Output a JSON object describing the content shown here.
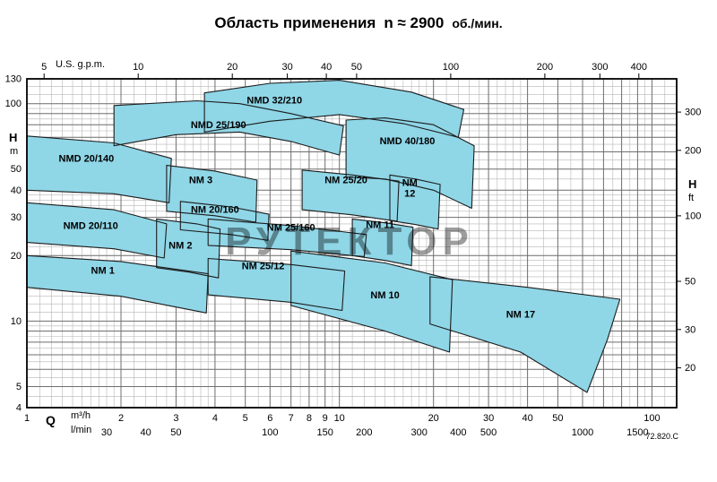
{
  "title": {
    "main": "Область применения",
    "speed": "n ≈ 2900",
    "units": "об./мин."
  },
  "watermark": "РУТЕКТОР",
  "doc_number": "72.820.C",
  "colors": {
    "region_fill": "#8fd6e7",
    "region_stroke": "#1c1c1c",
    "grid_minor": "#b6b6b6",
    "grid_major": "#707070",
    "frame": "#000000"
  },
  "axes": {
    "top": {
      "label": "U.S. g.p.m.",
      "ticks": [
        5,
        10,
        20,
        30,
        40,
        50,
        100,
        200,
        300,
        400
      ],
      "to_m3h": 0.2271
    },
    "left": {
      "quantity": "H",
      "unit": "m",
      "ticks": [
        130,
        100,
        50,
        40,
        30,
        20,
        10,
        5,
        4
      ]
    },
    "right": {
      "quantity": "H",
      "unit": "ft",
      "ticks": [
        300,
        200,
        100,
        50,
        30,
        20
      ],
      "to_m": 0.3048
    },
    "bottom_m3h": {
      "quantity": "Q",
      "unit": "m³/h",
      "ticks": [
        1,
        2,
        3,
        4,
        5,
        6,
        7,
        8,
        9,
        10,
        20,
        30,
        40,
        50,
        100
      ]
    },
    "bottom_lmin": {
      "unit": "l/min",
      "ticks": [
        30,
        40,
        50,
        100,
        150,
        200,
        300,
        400,
        500,
        1000,
        1500
      ],
      "to_m3h": 0.06
    }
  },
  "chart_data": {
    "type": "area",
    "title": "Область применения n ≈ 2900 об./мин.",
    "x_axis": {
      "label": "Q",
      "unit": "m³/h",
      "scale": "log",
      "range_m3h": [
        1,
        120
      ]
    },
    "y_axis": {
      "label": "H",
      "unit": "m",
      "scale": "log",
      "range_m": [
        4,
        130
      ]
    },
    "grid": "log-log, minor and major lines",
    "regions": [
      {
        "label": "NMD 32/210",
        "label_pos": [
          6.2,
          100
        ],
        "points": [
          [
            3.7,
            112
          ],
          [
            6,
            124
          ],
          [
            10,
            128
          ],
          [
            17,
            113
          ],
          [
            25,
            94
          ],
          [
            24,
            70
          ],
          [
            16,
            81
          ],
          [
            10,
            89
          ],
          [
            6,
            83
          ],
          [
            3.7,
            74
          ]
        ]
      },
      {
        "label": "NMD 25/190",
        "label_pos": [
          4.1,
          77
        ],
        "points": [
          [
            1.9,
            98
          ],
          [
            3.5,
            103
          ],
          [
            4.8,
            100
          ],
          [
            7,
            90
          ],
          [
            10.3,
            79
          ],
          [
            10,
            58
          ],
          [
            7,
            67
          ],
          [
            4.8,
            74
          ],
          [
            3,
            72
          ],
          [
            1.9,
            64
          ]
        ]
      },
      {
        "label": "NMD 40/180",
        "label_pos": [
          16.5,
          65
        ],
        "points": [
          [
            10.5,
            84
          ],
          [
            14,
            86
          ],
          [
            20,
            80
          ],
          [
            27,
            64
          ],
          [
            26.5,
            33
          ],
          [
            20,
            40
          ],
          [
            14,
            45
          ],
          [
            10.5,
            46
          ]
        ]
      },
      {
        "label": "NMD 20/140",
        "label_pos": [
          1.55,
          54
        ],
        "points": [
          [
            1,
            71
          ],
          [
            1.9,
            66
          ],
          [
            2.9,
            56
          ],
          [
            2.85,
            35
          ],
          [
            1.9,
            38.5
          ],
          [
            1,
            40
          ]
        ]
      },
      {
        "label": "NM 3",
        "label_pos": [
          3.6,
          43
        ],
        "points": [
          [
            2.8,
            52
          ],
          [
            4,
            49
          ],
          [
            5.45,
            44.5
          ],
          [
            5.4,
            28.5
          ],
          [
            4,
            30.5
          ],
          [
            2.8,
            32
          ]
        ]
      },
      {
        "label": "NM 25/20",
        "label_pos": [
          10.5,
          43
        ],
        "points": [
          [
            7.6,
            49.5
          ],
          [
            11,
            47
          ],
          [
            15.5,
            44
          ],
          [
            15.3,
            28.8
          ],
          [
            11,
            30.8
          ],
          [
            7.6,
            32.5
          ]
        ]
      },
      {
        "label": "NM 12",
        "label_pos": [
          16.8,
          41
        ],
        "stacked": true,
        "points": [
          [
            14.5,
            47
          ],
          [
            17.5,
            45
          ],
          [
            21,
            42.5
          ],
          [
            20.7,
            26.5
          ],
          [
            17.5,
            27.8
          ],
          [
            14.5,
            29
          ]
        ]
      },
      {
        "label": "NM 20/160",
        "label_pos": [
          4,
          31.5
        ],
        "points": [
          [
            3.1,
            35.5
          ],
          [
            4.5,
            33.5
          ],
          [
            5.95,
            31
          ],
          [
            5.9,
            23.5
          ],
          [
            4.5,
            25
          ],
          [
            3.1,
            26.3
          ]
        ]
      },
      {
        "label": "NM 25/160",
        "label_pos": [
          7,
          26
        ],
        "points": [
          [
            3.8,
            29.5
          ],
          [
            7,
            27.5
          ],
          [
            12.2,
            25
          ],
          [
            12,
            19.8
          ],
          [
            7,
            21.3
          ],
          [
            3.8,
            22.3
          ]
        ]
      },
      {
        "label": "NM 11",
        "label_pos": [
          13.5,
          26.8
        ],
        "points": [
          [
            11,
            29.5
          ],
          [
            14,
            28.3
          ],
          [
            17.2,
            27
          ],
          [
            17,
            18
          ],
          [
            14,
            19
          ],
          [
            11,
            20
          ]
        ]
      },
      {
        "label": "NMD 20/110",
        "label_pos": [
          1.6,
          26.5
        ],
        "points": [
          [
            1,
            35
          ],
          [
            1.9,
            32.5
          ],
          [
            2.8,
            28
          ],
          [
            2.75,
            19.5
          ],
          [
            1.9,
            21.5
          ],
          [
            1,
            23
          ]
        ]
      },
      {
        "label": "NM 2",
        "label_pos": [
          3.1,
          21.5
        ],
        "points": [
          [
            2.6,
            29.5
          ],
          [
            3.5,
            28
          ],
          [
            4.15,
            26.5
          ],
          [
            4.1,
            15.8
          ],
          [
            3.3,
            16.8
          ],
          [
            2.6,
            17.6
          ]
        ]
      },
      {
        "label": "NM 1",
        "label_pos": [
          1.75,
          16.5
        ],
        "points": [
          [
            1,
            20
          ],
          [
            2,
            18.8
          ],
          [
            3.8,
            16.5
          ],
          [
            3.75,
            10.9
          ],
          [
            2,
            13
          ],
          [
            1,
            14.3
          ]
        ]
      },
      {
        "label": "NM 25/12",
        "label_pos": [
          5.7,
          17.3
        ],
        "points": [
          [
            3.8,
            19.4
          ],
          [
            7,
            18.2
          ],
          [
            10.4,
            17
          ],
          [
            10.2,
            11.2
          ],
          [
            7,
            12.2
          ],
          [
            3.8,
            13.2
          ]
        ]
      },
      {
        "label": "NM 10",
        "label_pos": [
          14,
          12.7
        ],
        "points": [
          [
            7,
            21
          ],
          [
            14,
            18.5
          ],
          [
            23,
            15.5
          ],
          [
            22.5,
            7.2
          ],
          [
            14,
            9
          ],
          [
            7,
            11.8
          ]
        ]
      },
      {
        "label": "NM 17",
        "label_pos": [
          38,
          10.4
        ],
        "points": [
          [
            19.5,
            16
          ],
          [
            40,
            14.3
          ],
          [
            79,
            12.6
          ],
          [
            72,
            8.2
          ],
          [
            62,
            4.7
          ],
          [
            38,
            7.2
          ],
          [
            19.5,
            9.7
          ]
        ]
      }
    ]
  }
}
